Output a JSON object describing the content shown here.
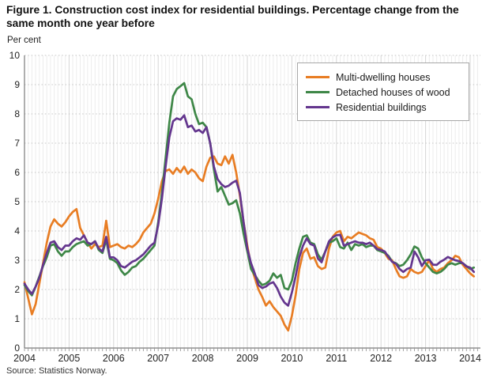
{
  "figure": {
    "title": "Figure 1. Construction cost index for residential buildings. Percentage change from the same month one year before",
    "unit_label": "Per cent",
    "source": "Source: Statistics Norway."
  },
  "chart_data": {
    "type": "line",
    "title": "Figure 1. Construction cost index for residential buildings. Percentage change from the same month one year before",
    "ylabel": "Per cent",
    "xlabel": "",
    "ylim": [
      0,
      10
    ],
    "y_ticks": [
      0,
      1,
      2,
      3,
      4,
      5,
      6,
      7,
      8,
      9,
      10
    ],
    "x_tick_labels": [
      "2004",
      "2005",
      "2006",
      "2007",
      "2008",
      "2009",
      "2010",
      "2011",
      "2012",
      "2013",
      "2014"
    ],
    "x_start": "2004-01",
    "x_end": "2014-02",
    "frequency": "monthly",
    "grid": "on",
    "legend_position": "top-right",
    "series": [
      {
        "name": "Multi-dwelling houses",
        "color": "#e87d23",
        "values": [
          2.25,
          1.7,
          1.15,
          1.5,
          2.2,
          2.9,
          3.6,
          4.15,
          4.4,
          4.25,
          4.15,
          4.3,
          4.5,
          4.65,
          4.75,
          4.1,
          3.85,
          3.6,
          3.4,
          3.55,
          3.45,
          3.5,
          4.35,
          3.45,
          3.5,
          3.55,
          3.45,
          3.4,
          3.5,
          3.45,
          3.55,
          3.7,
          3.95,
          4.1,
          4.25,
          4.6,
          5.1,
          5.7,
          6.05,
          6.1,
          5.95,
          6.15,
          6.0,
          6.2,
          5.95,
          6.1,
          6.0,
          5.8,
          5.7,
          6.2,
          6.5,
          6.55,
          6.3,
          6.25,
          6.55,
          6.3,
          6.6,
          6.0,
          5.2,
          4.3,
          3.5,
          2.8,
          2.4,
          2.0,
          1.75,
          1.45,
          1.6,
          1.4,
          1.25,
          1.1,
          0.8,
          0.6,
          1.1,
          1.8,
          2.7,
          3.25,
          3.4,
          3.05,
          3.1,
          2.8,
          2.7,
          2.75,
          3.4,
          3.8,
          3.95,
          4.0,
          3.65,
          3.8,
          3.75,
          3.85,
          3.95,
          3.9,
          3.85,
          3.75,
          3.7,
          3.45,
          3.4,
          3.25,
          3.05,
          3.0,
          2.7,
          2.45,
          2.4,
          2.45,
          2.7,
          2.6,
          2.55,
          2.6,
          2.8,
          3.0,
          2.7,
          2.6,
          2.7,
          2.75,
          2.9,
          3.0,
          3.15,
          3.1,
          2.85,
          2.7,
          2.55,
          2.45
        ]
      },
      {
        "name": "Detached houses of wood",
        "color": "#3e8747",
        "values": [
          2.15,
          1.95,
          1.8,
          2.1,
          2.45,
          2.8,
          3.1,
          3.5,
          3.55,
          3.3,
          3.15,
          3.3,
          3.3,
          3.45,
          3.55,
          3.6,
          3.65,
          3.5,
          3.55,
          3.65,
          3.35,
          3.25,
          3.7,
          3.05,
          3.0,
          2.9,
          2.65,
          2.5,
          2.6,
          2.75,
          2.8,
          2.95,
          3.05,
          3.2,
          3.35,
          3.5,
          4.3,
          5.3,
          6.5,
          7.7,
          8.6,
          8.85,
          8.95,
          9.05,
          8.6,
          8.5,
          8.0,
          7.65,
          7.7,
          7.55,
          7.0,
          6.1,
          5.35,
          5.5,
          5.2,
          4.9,
          4.95,
          5.05,
          4.6,
          3.9,
          3.3,
          2.7,
          2.5,
          2.3,
          2.15,
          2.2,
          2.3,
          2.55,
          2.4,
          2.5,
          2.05,
          2.0,
          2.3,
          2.9,
          3.4,
          3.8,
          3.85,
          3.6,
          3.55,
          3.2,
          3.02,
          3.3,
          3.6,
          3.65,
          3.75,
          3.45,
          3.4,
          3.6,
          3.35,
          3.55,
          3.5,
          3.55,
          3.45,
          3.5,
          3.5,
          3.35,
          3.3,
          3.25,
          3.15,
          2.95,
          2.9,
          2.8,
          2.85,
          3.0,
          3.2,
          3.47,
          3.4,
          3.1,
          2.9,
          2.75,
          2.6,
          2.55,
          2.6,
          2.7,
          2.85,
          2.9,
          2.85,
          2.9,
          2.9,
          2.8,
          2.7,
          2.75
        ]
      },
      {
        "name": "Residential buildings",
        "color": "#64368e",
        "values": [
          2.2,
          2.0,
          1.85,
          2.1,
          2.4,
          2.85,
          3.25,
          3.6,
          3.65,
          3.45,
          3.35,
          3.5,
          3.5,
          3.65,
          3.75,
          3.7,
          3.85,
          3.6,
          3.55,
          3.65,
          3.4,
          3.3,
          3.8,
          3.1,
          3.1,
          3.0,
          2.8,
          2.75,
          2.85,
          2.95,
          3.0,
          3.1,
          3.2,
          3.35,
          3.5,
          3.6,
          4.2,
          5.1,
          6.2,
          7.2,
          7.75,
          7.85,
          7.8,
          7.95,
          7.55,
          7.6,
          7.4,
          7.45,
          7.35,
          7.55,
          7.0,
          6.2,
          5.77,
          5.6,
          5.5,
          5.55,
          5.65,
          5.72,
          5.3,
          4.3,
          3.4,
          2.9,
          2.55,
          2.15,
          2.05,
          2.1,
          2.2,
          2.25,
          2.05,
          1.76,
          1.55,
          1.45,
          1.9,
          2.45,
          3.1,
          3.5,
          3.75,
          3.55,
          3.5,
          3.06,
          2.93,
          3.3,
          3.65,
          3.78,
          3.85,
          3.87,
          3.5,
          3.55,
          3.6,
          3.65,
          3.6,
          3.6,
          3.55,
          3.6,
          3.5,
          3.38,
          3.35,
          3.3,
          3.11,
          2.95,
          2.88,
          2.7,
          2.6,
          2.7,
          2.75,
          3.3,
          3.1,
          2.8,
          3.0,
          3.02,
          2.85,
          2.84,
          2.95,
          3.02,
          3.11,
          3.05,
          3.0,
          2.97,
          2.9,
          2.79,
          2.75,
          2.6
        ]
      }
    ],
    "colors": {
      "grid_minor": "#ececec",
      "grid_year": "#d6d6d6",
      "grid_dotted": "#c6c6c6",
      "axis": "#7a7a7a",
      "tick": "#999999",
      "text": "#222222"
    }
  }
}
